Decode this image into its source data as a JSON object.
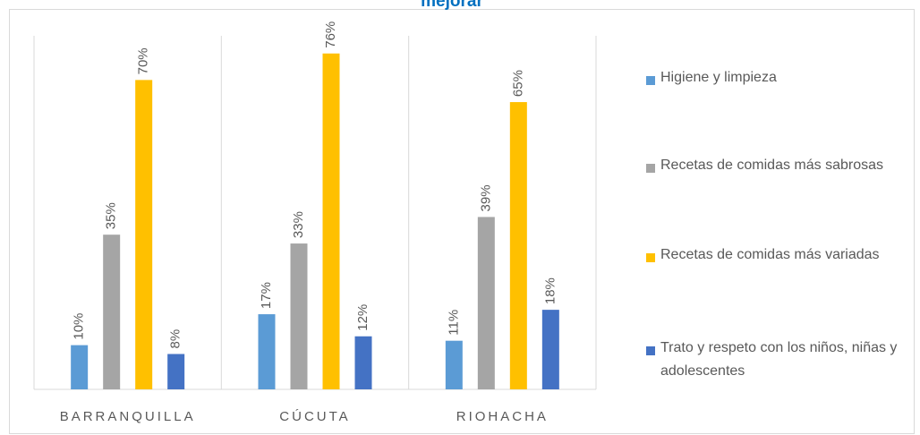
{
  "chart_data": {
    "type": "bar",
    "title": "mejorar",
    "categories": [
      "BARRANQUILLA",
      "CÚCUTA",
      "RIOHACHA"
    ],
    "series": [
      {
        "name": "Higiene y limpieza",
        "color": "#5b9bd5",
        "values": [
          10,
          17,
          11
        ],
        "value_labels": [
          "10%",
          "17%",
          "11%"
        ]
      },
      {
        "name": "Recetas de comidas más sabrosas",
        "color": "#a5a5a5",
        "values": [
          35,
          33,
          39
        ],
        "value_labels": [
          "35%",
          "33%",
          "39%"
        ]
      },
      {
        "name": "Recetas de comidas más variadas",
        "color": "#ffc000",
        "values": [
          70,
          76,
          65
        ],
        "value_labels": [
          "70%",
          "76%",
          "65%"
        ]
      },
      {
        "name": "Trato y respeto con los niños, niñas y adolescentes",
        "color": "#4472c4",
        "values": [
          8,
          12,
          18
        ],
        "value_labels": [
          "8%",
          "12%",
          "18%"
        ]
      }
    ],
    "ylim": [
      0,
      80
    ],
    "legend": "right"
  }
}
